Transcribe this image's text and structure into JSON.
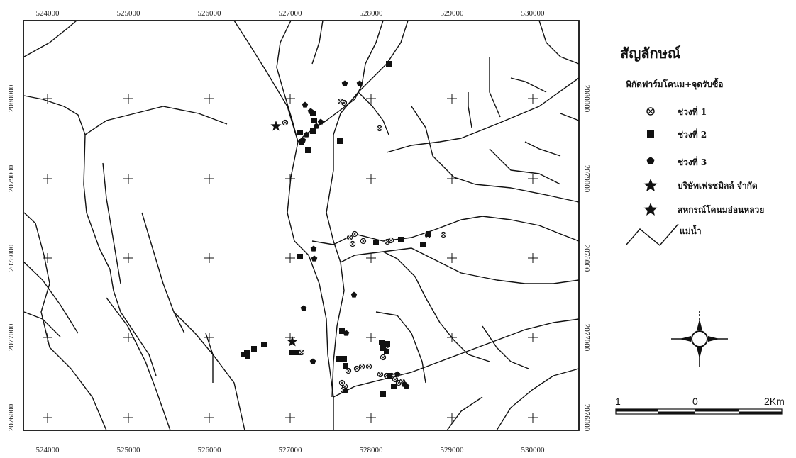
{
  "map": {
    "x_ticks": [
      "524000",
      "525000",
      "526000",
      "527000",
      "528000",
      "529000",
      "530000"
    ],
    "y_ticks_left": [
      "2080000",
      "2079000",
      "2078000",
      "2077000",
      "2076000"
    ],
    "y_ticks_right": [
      "2080000",
      "2079000",
      "2078000",
      "2077000",
      "2076000"
    ]
  },
  "legend": {
    "title": "สัญลักษณ์",
    "subtitle": "พิกัดฟาร์มโคนม+จุดรับซื้อ",
    "items": [
      {
        "symbol": "circle-x",
        "label": "ช่วงที่ 1"
      },
      {
        "symbol": "square",
        "label": "ช่วงที่ 2"
      },
      {
        "symbol": "pentagon",
        "label": "ช่วงที่ 3"
      },
      {
        "symbol": "star",
        "label": "บริษัทเฟรชมิลล์ จำกัด"
      },
      {
        "symbol": "star",
        "label": "สหกรณ์โคนมอ่อนหลวย"
      },
      {
        "symbol": "river",
        "label": "แม่น้ำ"
      }
    ]
  },
  "scale_bar": {
    "left": "1",
    "middle": "0",
    "right": "2Km"
  },
  "compass": {
    "icon": "compass-rose-icon"
  }
}
